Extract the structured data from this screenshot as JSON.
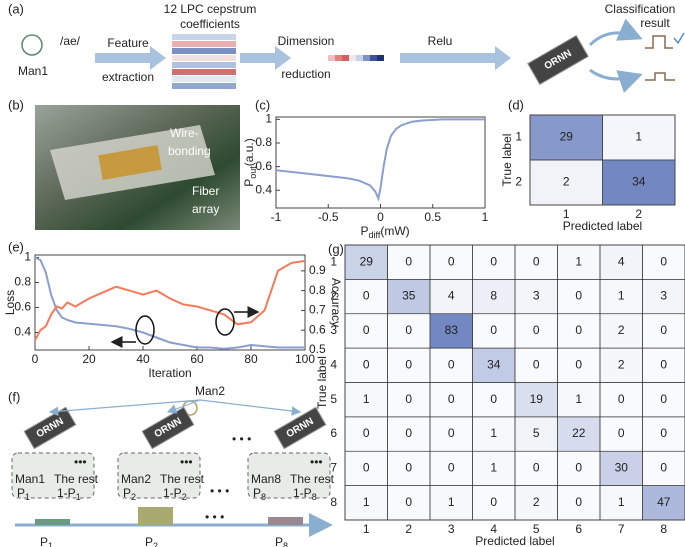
{
  "panel_labels": [
    "(a)",
    "(b)",
    "(c)",
    "(d)",
    "(e)",
    "(f)",
    "(g)"
  ],
  "pipeline": {
    "phoneme": "/ae/",
    "speaker": "Man1",
    "step1": [
      "Feature",
      "extraction"
    ],
    "features": [
      "12 LPC cepstrum",
      "coefficients"
    ],
    "step2": [
      "Dimension",
      "reduction"
    ],
    "step3": "Relu",
    "chip": "ORNN",
    "result": [
      "Classification",
      "result"
    ]
  },
  "photo": {
    "labels": [
      "Wire-",
      "bonding",
      "Fiber",
      "array"
    ]
  },
  "network": {
    "speaker": "Man2",
    "chip": "ORNN",
    "groups": [
      {
        "name": "Man1",
        "rest": "The rest",
        "p": "P",
        "psub": "1",
        "q": "1-P",
        "qsub": "1"
      },
      {
        "name": "Man2",
        "rest": "The rest",
        "p": "P",
        "psub": "2",
        "q": "1-P",
        "qsub": "2"
      },
      {
        "name": "Man8",
        "rest": "The rest",
        "p": "P",
        "psub": "8",
        "q": "1-P",
        "qsub": "8"
      }
    ],
    "bars": [
      {
        "label": "P",
        "sub": "1"
      },
      {
        "label": "P",
        "sub": "2"
      },
      {
        "label": "P",
        "sub": "8"
      }
    ]
  },
  "chart_data": [
    {
      "type": "line",
      "xlabel": {
        "main": "P",
        "sub": "diff",
        "unit": "(mW)"
      },
      "ylabel": {
        "main": "P",
        "sub": "out",
        "unit": "(a.u.)"
      },
      "x": [
        -1,
        -0.8,
        -0.6,
        -0.4,
        -0.3,
        -0.2,
        -0.1,
        -0.05,
        -0.02,
        0,
        0.03,
        0.06,
        0.1,
        0.15,
        0.2,
        0.3,
        0.4,
        0.6,
        0.8,
        1
      ],
      "series": [
        {
          "color": "#8a9fd0",
          "values": [
            0.57,
            0.55,
            0.53,
            0.51,
            0.5,
            0.48,
            0.44,
            0.39,
            0.33,
            0.42,
            0.6,
            0.75,
            0.86,
            0.92,
            0.95,
            0.98,
            0.99,
            1,
            1,
            1
          ]
        }
      ],
      "xlim": [
        -1,
        1
      ],
      "xticks": [
        -1,
        -0.5,
        0,
        0.5,
        1
      ],
      "ylim": [
        0.25,
        1.02
      ],
      "yticks": [
        0.4,
        0.6,
        0.8,
        1
      ]
    },
    {
      "type": "heatmap",
      "xlabel": "Predicted label",
      "ylabel": "True label",
      "categories": [
        "1",
        "2"
      ],
      "values": [
        [
          29,
          1
        ],
        [
          2,
          34
        ]
      ],
      "color": "#6a7fbf"
    },
    {
      "type": "line",
      "xlabel": "Iteration",
      "ylabel": "Loss",
      "y2label": "Accuracy",
      "x": [
        0,
        2,
        4,
        6,
        8,
        10,
        12,
        15,
        20,
        25,
        30,
        35,
        40,
        45,
        50,
        55,
        60,
        65,
        70,
        75,
        80,
        85,
        90,
        95,
        100
      ],
      "series": [
        {
          "color": "#8a9fd0",
          "values": [
            1,
            0.98,
            0.88,
            0.7,
            0.58,
            0.52,
            0.5,
            0.48,
            0.47,
            0.46,
            0.45,
            0.43,
            0.4,
            0.36,
            0.32,
            0.3,
            0.28,
            0.28,
            0.27,
            0.28,
            0.3,
            0.29,
            0.28,
            0.28,
            0.28
          ]
        },
        {
          "color": "#f47a5a",
          "axis": "y2",
          "values": [
            0.55,
            0.6,
            0.62,
            0.68,
            0.72,
            0.71,
            0.74,
            0.72,
            0.76,
            0.79,
            0.82,
            0.8,
            0.78,
            0.8,
            0.76,
            0.73,
            0.72,
            0.7,
            0.68,
            0.63,
            0.64,
            0.7,
            0.9,
            0.94,
            0.95
          ]
        }
      ],
      "xlim": [
        0,
        100
      ],
      "xticks": [
        0,
        20,
        40,
        60,
        80,
        100
      ],
      "ylim": [
        0.26,
        1.02
      ],
      "yticks": [
        0.4,
        0.6,
        0.8,
        1
      ],
      "y2lim": [
        0.5,
        0.98
      ],
      "y2ticks": [
        0.5,
        0.6,
        0.7,
        0.8,
        0.9
      ]
    },
    {
      "type": "heatmap",
      "xlabel": "Predicted label",
      "ylabel": "True label",
      "categories": [
        "1",
        "2",
        "3",
        "4",
        "5",
        "6",
        "7",
        "8"
      ],
      "values": [
        [
          29,
          0,
          0,
          0,
          0,
          1,
          4,
          0
        ],
        [
          0,
          35,
          4,
          8,
          3,
          0,
          1,
          3
        ],
        [
          0,
          0,
          83,
          0,
          0,
          0,
          2,
          0
        ],
        [
          0,
          0,
          0,
          34,
          0,
          0,
          2,
          0
        ],
        [
          1,
          0,
          0,
          0,
          19,
          1,
          0,
          0
        ],
        [
          0,
          0,
          0,
          1,
          5,
          22,
          0,
          0
        ],
        [
          0,
          0,
          0,
          1,
          0,
          0,
          30,
          0
        ],
        [
          1,
          0,
          1,
          0,
          2,
          0,
          1,
          47
        ]
      ],
      "color": "#6a7fbf"
    }
  ]
}
